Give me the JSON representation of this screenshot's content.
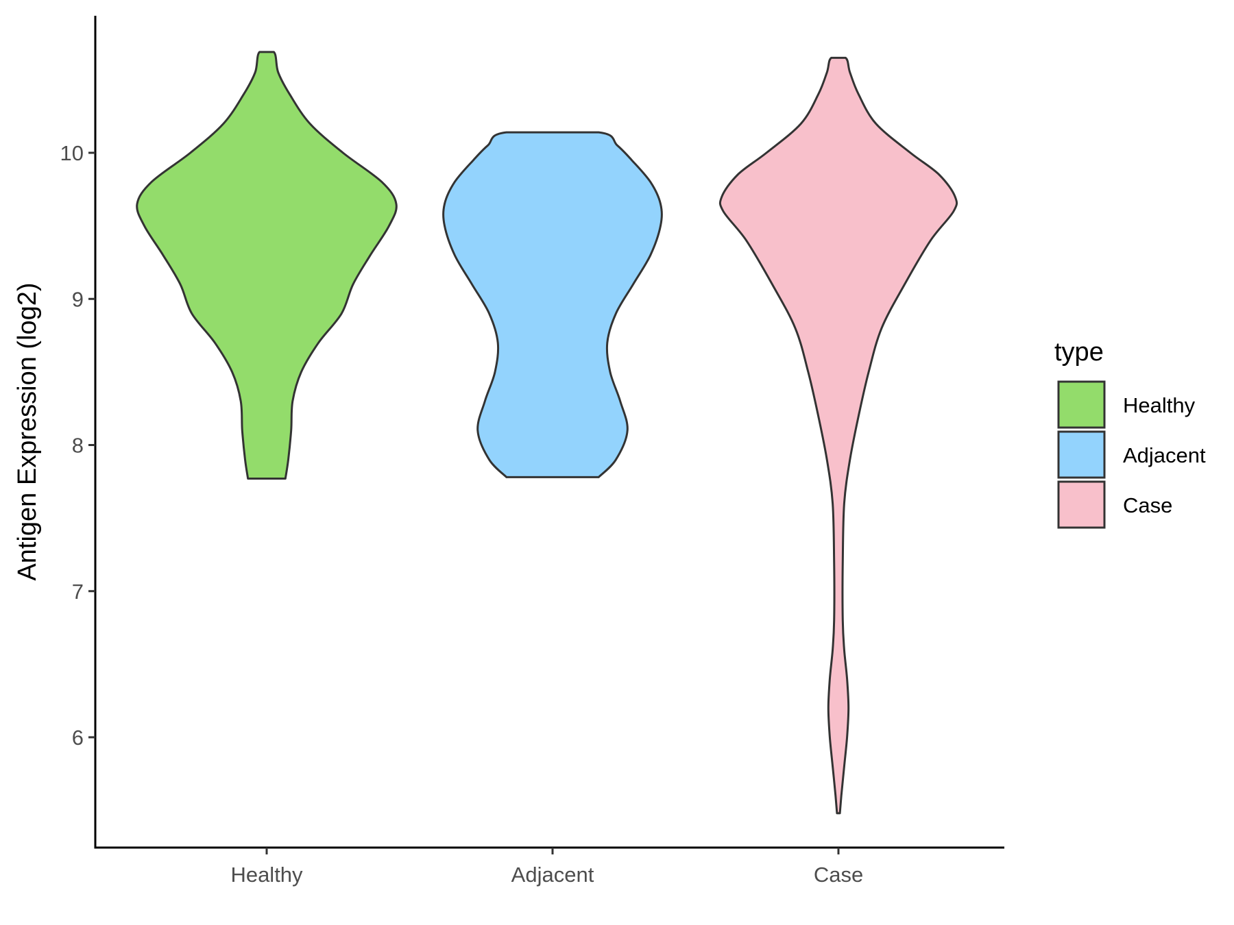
{
  "chart_data": {
    "type": "violin",
    "ylabel": "Antigen Expression (log2)",
    "xlabel": "",
    "categories": [
      "Healthy",
      "Adjacent",
      "Case"
    ],
    "yticks": [
      6,
      7,
      8,
      9,
      10
    ],
    "ylim": [
      5.2,
      10.95
    ],
    "legend": {
      "title": "type",
      "position": "right",
      "entries": [
        "Healthy",
        "Adjacent",
        "Case"
      ]
    },
    "colors": {
      "Healthy": "#93dc6b",
      "Adjacent": "#93d3fd",
      "Case": "#f8c0cb",
      "outline": "#333333"
    },
    "grid": false,
    "violins": [
      {
        "name": "Healthy",
        "min": 7.77,
        "max": 10.69,
        "density_profile": [
          [
            7.77,
            0.13
          ],
          [
            7.9,
            0.15
          ],
          [
            8.1,
            0.17
          ],
          [
            8.3,
            0.18
          ],
          [
            8.5,
            0.24
          ],
          [
            8.7,
            0.36
          ],
          [
            8.9,
            0.52
          ],
          [
            9.1,
            0.6
          ],
          [
            9.3,
            0.72
          ],
          [
            9.5,
            0.85
          ],
          [
            9.65,
            0.9
          ],
          [
            9.8,
            0.8
          ],
          [
            10.0,
            0.53
          ],
          [
            10.2,
            0.3
          ],
          [
            10.4,
            0.16
          ],
          [
            10.55,
            0.08
          ],
          [
            10.69,
            0.05
          ]
        ]
      },
      {
        "name": "Adjacent",
        "min": 7.78,
        "max": 10.14,
        "density_profile": [
          [
            7.78,
            0.32
          ],
          [
            7.9,
            0.44
          ],
          [
            8.1,
            0.52
          ],
          [
            8.3,
            0.47
          ],
          [
            8.5,
            0.4
          ],
          [
            8.7,
            0.38
          ],
          [
            8.9,
            0.44
          ],
          [
            9.1,
            0.56
          ],
          [
            9.3,
            0.68
          ],
          [
            9.5,
            0.75
          ],
          [
            9.65,
            0.75
          ],
          [
            9.8,
            0.68
          ],
          [
            9.95,
            0.55
          ],
          [
            10.05,
            0.45
          ],
          [
            10.14,
            0.32
          ]
        ]
      },
      {
        "name": "Case",
        "min": 5.48,
        "max": 10.65,
        "density_profile": [
          [
            5.48,
            0.01
          ],
          [
            5.6,
            0.02
          ],
          [
            5.8,
            0.04
          ],
          [
            6.0,
            0.06
          ],
          [
            6.2,
            0.07
          ],
          [
            6.4,
            0.06
          ],
          [
            6.6,
            0.04
          ],
          [
            6.8,
            0.03
          ],
          [
            7.2,
            0.03
          ],
          [
            7.6,
            0.04
          ],
          [
            7.9,
            0.08
          ],
          [
            8.2,
            0.14
          ],
          [
            8.5,
            0.21
          ],
          [
            8.8,
            0.3
          ],
          [
            9.1,
            0.46
          ],
          [
            9.4,
            0.64
          ],
          [
            9.6,
            0.8
          ],
          [
            9.7,
            0.81
          ],
          [
            9.85,
            0.7
          ],
          [
            10.0,
            0.5
          ],
          [
            10.2,
            0.26
          ],
          [
            10.4,
            0.14
          ],
          [
            10.55,
            0.08
          ],
          [
            10.65,
            0.05
          ]
        ]
      }
    ]
  }
}
